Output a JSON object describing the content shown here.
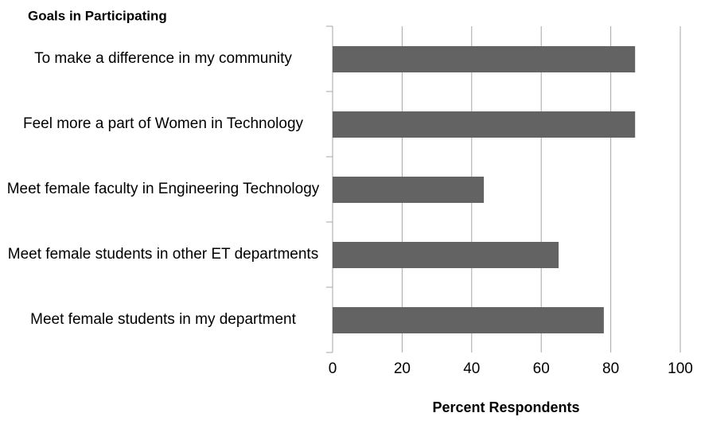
{
  "chart_data": {
    "type": "bar",
    "orientation": "horizontal",
    "title": "Goals in Participating",
    "x_label": "Percent Respondents",
    "categories": [
      "To make a difference in my community",
      "Feel more a part of Women in Technology",
      "Meet female faculty in Engineering Technology",
      "Meet female students in other ET departments",
      "Meet female students in my department"
    ],
    "values": [
      87,
      87,
      43.5,
      65,
      78
    ],
    "color": "#636363",
    "xlim": [
      0,
      100
    ],
    "xticks": [
      0,
      20,
      40,
      60,
      80,
      100
    ],
    "grid": true
  }
}
